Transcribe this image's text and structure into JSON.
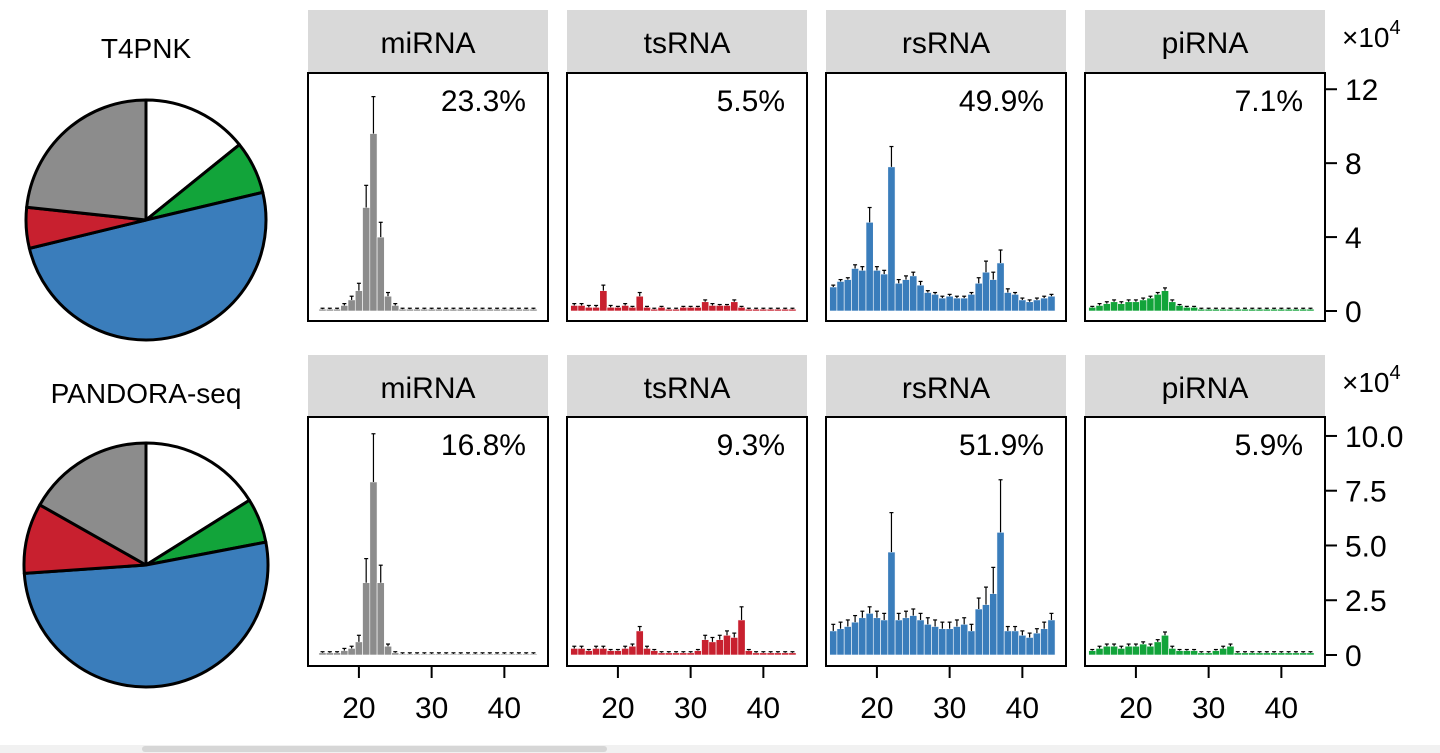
{
  "chart_data": {
    "type": "bar",
    "description_row_labels": [
      "T4PNK",
      "PANDORA-seq"
    ],
    "categories": [
      "miRNA",
      "tsRNA",
      "rsRNA",
      "piRNA"
    ],
    "colors": {
      "miRNA": "#8c8c8c",
      "tsRNA": "#c8202f",
      "rsRNA": "#3a7dbb",
      "piRNA": "#12a43a",
      "other": "#ffffff"
    },
    "xlim": [
      13,
      46
    ],
    "xticks": [
      20,
      30,
      40
    ],
    "rows": [
      {
        "method": "T4PNK",
        "y_multiplier": "×10",
        "y_exponent": "4",
        "ylim": [
          0,
          12.5
        ],
        "yticks": [
          0,
          4,
          8,
          12
        ],
        "ytick_labels": [
          "0",
          "4",
          "8",
          "12"
        ],
        "pie": [
          {
            "label": "miRNA",
            "value": 23.3
          },
          {
            "label": "tsRNA",
            "value": 5.5
          },
          {
            "label": "rsRNA",
            "value": 49.9
          },
          {
            "label": "piRNA",
            "value": 7.1
          },
          {
            "label": "other",
            "value": 14.2
          }
        ],
        "panels": [
          {
            "name": "miRNA",
            "percent": "23.3%",
            "x": [
              15,
              16,
              17,
              18,
              19,
              20,
              21,
              22,
              23,
              24,
              25,
              26,
              27,
              28,
              29,
              30,
              31,
              32,
              33,
              34,
              35,
              36,
              37,
              38,
              39,
              40,
              41,
              42,
              43,
              44
            ],
            "values": [
              0.1,
              0.1,
              0.1,
              0.3,
              0.6,
              1.1,
              5.6,
              9.6,
              4.0,
              0.8,
              0.3,
              0.1,
              0.1,
              0.1,
              0.1,
              0.1,
              0.1,
              0.1,
              0.1,
              0.1,
              0.1,
              0.1,
              0.1,
              0.1,
              0.1,
              0.1,
              0.1,
              0.1,
              0.1,
              0.1
            ],
            "errors": [
              0.05,
              0.05,
              0.05,
              0.1,
              0.2,
              0.4,
              1.2,
              2.0,
              0.8,
              0.2,
              0.1,
              0.05,
              0.05,
              0.05,
              0.05,
              0.05,
              0.05,
              0.05,
              0.05,
              0.05,
              0.05,
              0.05,
              0.05,
              0.05,
              0.05,
              0.05,
              0.05,
              0.05,
              0.05,
              0.05
            ]
          },
          {
            "name": "tsRNA",
            "percent": "5.5%",
            "x": [
              14,
              15,
              16,
              17,
              18,
              19,
              20,
              21,
              22,
              23,
              24,
              25,
              26,
              27,
              28,
              29,
              30,
              31,
              32,
              33,
              34,
              35,
              36,
              37,
              38,
              39,
              40,
              41,
              42,
              43,
              44
            ],
            "values": [
              0.3,
              0.3,
              0.2,
              0.2,
              1.1,
              0.2,
              0.2,
              0.3,
              0.2,
              0.8,
              0.2,
              0.1,
              0.2,
              0.1,
              0.1,
              0.2,
              0.2,
              0.2,
              0.5,
              0.3,
              0.3,
              0.3,
              0.5,
              0.2,
              0.1,
              0.1,
              0.1,
              0.1,
              0.1,
              0.1,
              0.1
            ],
            "errors": [
              0.1,
              0.1,
              0.1,
              0.1,
              0.3,
              0.1,
              0.05,
              0.1,
              0.05,
              0.2,
              0.05,
              0.05,
              0.05,
              0.05,
              0.05,
              0.05,
              0.05,
              0.05,
              0.1,
              0.1,
              0.05,
              0.05,
              0.1,
              0.05,
              0.05,
              0.05,
              0.05,
              0.05,
              0.05,
              0.05,
              0.05
            ]
          },
          {
            "name": "rsRNA",
            "percent": "49.9%",
            "x": [
              14,
              15,
              16,
              17,
              18,
              19,
              20,
              21,
              22,
              23,
              24,
              25,
              26,
              27,
              28,
              29,
              30,
              31,
              32,
              33,
              34,
              35,
              36,
              37,
              38,
              39,
              40,
              41,
              42,
              43,
              44
            ],
            "values": [
              1.3,
              1.6,
              1.7,
              2.3,
              2.2,
              4.8,
              2.2,
              2.0,
              7.8,
              1.5,
              1.7,
              1.9,
              1.4,
              1.0,
              0.9,
              0.7,
              0.8,
              0.7,
              0.7,
              0.9,
              1.5,
              2.1,
              1.7,
              2.6,
              1.0,
              0.9,
              0.6,
              0.5,
              0.6,
              0.7,
              0.8
            ],
            "errors": [
              0.1,
              0.1,
              0.1,
              0.2,
              0.2,
              0.8,
              0.2,
              0.2,
              1.1,
              0.2,
              0.2,
              0.2,
              0.2,
              0.1,
              0.1,
              0.1,
              0.1,
              0.1,
              0.1,
              0.1,
              0.3,
              0.6,
              0.4,
              0.7,
              0.2,
              0.1,
              0.1,
              0.1,
              0.1,
              0.1,
              0.1
            ]
          },
          {
            "name": "piRNA",
            "percent": "7.1%",
            "x": [
              14,
              15,
              16,
              17,
              18,
              19,
              20,
              21,
              22,
              23,
              24,
              25,
              26,
              27,
              28,
              29,
              30,
              31,
              32,
              33,
              34,
              35,
              36,
              37,
              38,
              39,
              40,
              41,
              42,
              43,
              44
            ],
            "values": [
              0.2,
              0.3,
              0.4,
              0.5,
              0.4,
              0.5,
              0.5,
              0.6,
              0.7,
              0.9,
              1.1,
              0.5,
              0.3,
              0.2,
              0.2,
              0.1,
              0.1,
              0.1,
              0.1,
              0.1,
              0.1,
              0.1,
              0.1,
              0.1,
              0.1,
              0.1,
              0.1,
              0.1,
              0.1,
              0.1,
              0.1
            ],
            "errors": [
              0.05,
              0.1,
              0.1,
              0.1,
              0.1,
              0.1,
              0.1,
              0.1,
              0.1,
              0.1,
              0.15,
              0.1,
              0.05,
              0.05,
              0.05,
              0.05,
              0.05,
              0.05,
              0.05,
              0.05,
              0.05,
              0.05,
              0.05,
              0.05,
              0.05,
              0.05,
              0.05,
              0.05,
              0.05,
              0.05,
              0.05
            ]
          }
        ]
      },
      {
        "method": "PANDORA-seq",
        "y_multiplier": "×10",
        "y_exponent": "4",
        "ylim": [
          0,
          10.5
        ],
        "yticks": [
          0,
          2.5,
          5,
          7.5,
          10
        ],
        "ytick_labels": [
          "0",
          "2.5",
          "5.0",
          "7.5",
          "10.0"
        ],
        "pie": [
          {
            "label": "miRNA",
            "value": 16.8
          },
          {
            "label": "tsRNA",
            "value": 9.3
          },
          {
            "label": "rsRNA",
            "value": 51.9
          },
          {
            "label": "piRNA",
            "value": 5.9
          },
          {
            "label": "other",
            "value": 16.1
          }
        ],
        "panels": [
          {
            "name": "miRNA",
            "percent": "16.8%",
            "x": [
              15,
              16,
              17,
              18,
              19,
              20,
              21,
              22,
              23,
              24,
              25,
              26,
              27,
              28,
              29,
              30,
              31,
              32,
              33,
              34,
              35,
              36,
              37,
              38,
              39,
              40,
              41,
              42,
              43,
              44
            ],
            "values": [
              0.1,
              0.1,
              0.1,
              0.2,
              0.3,
              0.6,
              3.3,
              7.9,
              3.3,
              0.4,
              0.1,
              0.05,
              0.05,
              0.05,
              0.05,
              0.05,
              0.05,
              0.05,
              0.05,
              0.05,
              0.05,
              0.05,
              0.05,
              0.05,
              0.05,
              0.05,
              0.05,
              0.05,
              0.05,
              0.05
            ],
            "errors": [
              0.05,
              0.05,
              0.05,
              0.1,
              0.1,
              0.3,
              1.1,
              2.2,
              0.8,
              0.1,
              0.05,
              0.05,
              0.05,
              0.05,
              0.05,
              0.05,
              0.05,
              0.05,
              0.05,
              0.05,
              0.05,
              0.05,
              0.05,
              0.05,
              0.05,
              0.05,
              0.05,
              0.05,
              0.05,
              0.05
            ]
          },
          {
            "name": "tsRNA",
            "percent": "9.3%",
            "x": [
              14,
              15,
              16,
              17,
              18,
              19,
              20,
              21,
              22,
              23,
              24,
              25,
              26,
              27,
              28,
              29,
              30,
              31,
              32,
              33,
              34,
              35,
              36,
              37,
              38,
              39,
              40,
              41,
              42,
              43,
              44
            ],
            "values": [
              0.3,
              0.3,
              0.2,
              0.3,
              0.3,
              0.2,
              0.2,
              0.3,
              0.4,
              1.1,
              0.3,
              0.2,
              0.1,
              0.1,
              0.1,
              0.1,
              0.1,
              0.2,
              0.7,
              0.6,
              0.7,
              0.9,
              0.8,
              1.6,
              0.2,
              0.1,
              0.1,
              0.1,
              0.1,
              0.1,
              0.1
            ],
            "errors": [
              0.1,
              0.1,
              0.05,
              0.1,
              0.1,
              0.05,
              0.05,
              0.1,
              0.1,
              0.2,
              0.1,
              0.05,
              0.05,
              0.05,
              0.05,
              0.05,
              0.05,
              0.05,
              0.2,
              0.2,
              0.2,
              0.2,
              0.2,
              0.6,
              0.05,
              0.05,
              0.05,
              0.05,
              0.05,
              0.05,
              0.05
            ]
          },
          {
            "name": "rsRNA",
            "percent": "51.9%",
            "x": [
              14,
              15,
              16,
              17,
              18,
              19,
              20,
              21,
              22,
              23,
              24,
              25,
              26,
              27,
              28,
              29,
              30,
              31,
              32,
              33,
              34,
              35,
              36,
              37,
              38,
              39,
              40,
              41,
              42,
              43,
              44
            ],
            "values": [
              1.1,
              1.2,
              1.3,
              1.5,
              1.7,
              1.9,
              1.7,
              1.6,
              4.7,
              1.6,
              1.7,
              1.8,
              1.6,
              1.4,
              1.3,
              1.2,
              1.2,
              1.3,
              1.4,
              1.1,
              2.1,
              2.3,
              2.8,
              5.6,
              1.1,
              1.1,
              0.9,
              0.8,
              1.0,
              1.2,
              1.6
            ],
            "errors": [
              0.3,
              0.3,
              0.3,
              0.3,
              0.3,
              0.3,
              0.3,
              0.3,
              1.8,
              0.3,
              0.3,
              0.3,
              0.3,
              0.3,
              0.3,
              0.3,
              0.3,
              0.3,
              0.3,
              0.3,
              0.5,
              0.8,
              1.2,
              2.4,
              0.2,
              0.2,
              0.2,
              0.2,
              0.2,
              0.3,
              0.3
            ]
          },
          {
            "name": "piRNA",
            "percent": "5.9%",
            "x": [
              14,
              15,
              16,
              17,
              18,
              19,
              20,
              21,
              22,
              23,
              24,
              25,
              26,
              27,
              28,
              29,
              30,
              31,
              32,
              33,
              34,
              35,
              36,
              37,
              38,
              39,
              40,
              41,
              42,
              43,
              44
            ],
            "values": [
              0.2,
              0.3,
              0.4,
              0.4,
              0.3,
              0.4,
              0.4,
              0.5,
              0.4,
              0.6,
              0.9,
              0.3,
              0.2,
              0.2,
              0.2,
              0.1,
              0.1,
              0.2,
              0.3,
              0.4,
              0.1,
              0.1,
              0.1,
              0.1,
              0.1,
              0.1,
              0.1,
              0.1,
              0.1,
              0.1,
              0.1
            ],
            "errors": [
              0.05,
              0.1,
              0.1,
              0.1,
              0.1,
              0.1,
              0.1,
              0.1,
              0.1,
              0.1,
              0.15,
              0.1,
              0.05,
              0.05,
              0.05,
              0.05,
              0.05,
              0.05,
              0.1,
              0.1,
              0.05,
              0.05,
              0.05,
              0.05,
              0.05,
              0.05,
              0.05,
              0.05,
              0.05,
              0.05,
              0.05
            ]
          }
        ]
      }
    ]
  }
}
